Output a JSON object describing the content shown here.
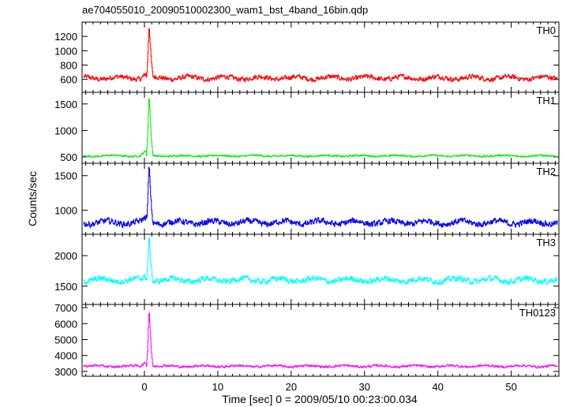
{
  "chart_data": {
    "type": "line",
    "title": "ae704055010_20090510002300_wam1_bst_4band_16bin.qdp",
    "xlabel": "Time [sec] 0 = 2009/05/10 00:23:00.034",
    "ylabel": "Counts/sec",
    "xlim": [
      -8.5,
      56.5
    ],
    "x_ticks": [
      0,
      10,
      20,
      30,
      40,
      50
    ],
    "x_tick_labels": [
      "0",
      "10",
      "20",
      "30",
      "40",
      "50"
    ],
    "error_bars": true,
    "step_style": true,
    "panels": [
      {
        "name": "TH0",
        "color": "#ff0000",
        "ylim": [
          420,
          1400
        ],
        "yticks": [
          600,
          800,
          1000,
          1200
        ],
        "ytick_labels": [
          "600",
          "800",
          "1000",
          "1200"
        ],
        "baseline": 620,
        "noise": 55,
        "peak_time": 0.6,
        "peak_value": 1380
      },
      {
        "name": "TH1",
        "color": "#00ee00",
        "ylim": [
          380,
          1720
        ],
        "yticks": [
          500,
          1000,
          1500
        ],
        "ytick_labels": [
          "500",
          "1000",
          "1500"
        ],
        "baseline": 520,
        "noise": 30,
        "peak_time": 0.6,
        "peak_value": 1700
      },
      {
        "name": "TH2",
        "color": "#0000ee",
        "ylim": [
          650,
          1680
        ],
        "yticks": [
          1000,
          1500
        ],
        "ytick_labels": [
          "1000",
          "1500"
        ],
        "baseline": 820,
        "noise": 70,
        "peak_time": 0.6,
        "peak_value": 1660
      },
      {
        "name": "TH3",
        "color": "#00ffff",
        "ylim": [
          1200,
          2350
        ],
        "yticks": [
          1500,
          2000
        ],
        "ytick_labels": [
          "1500",
          "2000"
        ],
        "baseline": 1600,
        "noise": 75,
        "peak_time": 0.6,
        "peak_value": 2330
      },
      {
        "name": "TH0123",
        "color": "#ff00ff",
        "ylim": [
          2700,
          7200
        ],
        "yticks": [
          3000,
          4000,
          5000,
          6000,
          7000
        ],
        "ytick_labels": [
          "3000",
          "4000",
          "5000",
          "6000",
          "7000"
        ],
        "baseline": 3330,
        "noise": 120,
        "peak_time": 0.6,
        "peak_value": 7050
      }
    ]
  }
}
